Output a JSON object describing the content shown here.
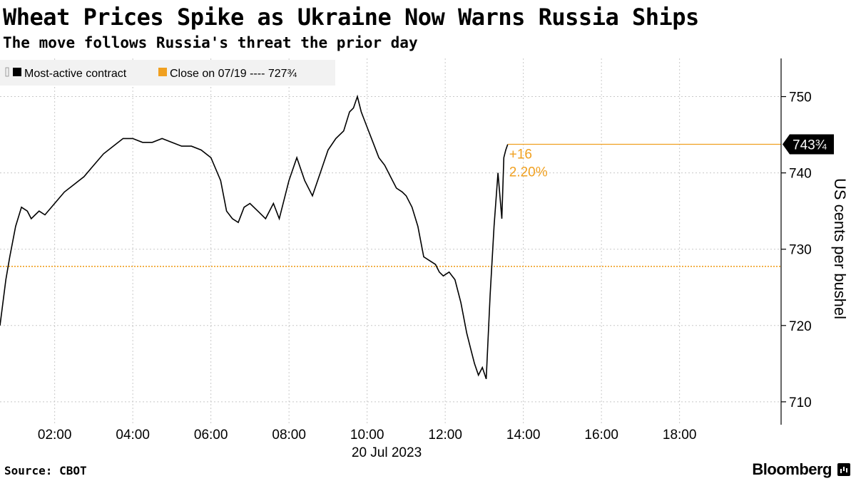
{
  "title": "Wheat Prices Spike as Ukraine Now Warns Russia Ships",
  "subtitle": "The move follows Russia's threat the prior day",
  "source": "Source: CBOT",
  "brand": "Bloomberg",
  "chart_data": {
    "type": "line",
    "ylabel": "US cents per bushel",
    "xlabel": "20 Jul 2023",
    "ylim": [
      707,
      755
    ],
    "xlim": [
      0.6,
      20.6
    ],
    "y_ticks": [
      710,
      720,
      730,
      740,
      750
    ],
    "x_ticks": [
      2,
      4,
      6,
      8,
      10,
      12,
      14,
      16,
      18
    ],
    "x_tick_labels": [
      "02:00",
      "04:00",
      "06:00",
      "08:00",
      "10:00",
      "12:00",
      "14:00",
      "16:00",
      "18:00"
    ],
    "grid": true,
    "legend": {
      "placement": "top-left",
      "items": [
        {
          "label": "Most-active contract",
          "color": "#000000"
        },
        {
          "label": "Close on 07/19 ---- 727¾",
          "color": "#f0a020"
        }
      ]
    },
    "colors": {
      "series": "#000000",
      "reference": "#f0a020"
    },
    "reference_line": {
      "label": "Close on 07/19",
      "value": 727.75
    },
    "last_value": {
      "value": 743.75,
      "label": "743¾"
    },
    "annotation": {
      "change": "+16",
      "percent": "2.20%"
    },
    "series": [
      {
        "name": "Most-active contract",
        "x": [
          0.6,
          0.75,
          0.85,
          1.0,
          1.15,
          1.3,
          1.4,
          1.5,
          1.6,
          1.75,
          2.0,
          2.25,
          2.5,
          2.75,
          3.0,
          3.25,
          3.5,
          3.75,
          4.0,
          4.25,
          4.5,
          4.75,
          5.0,
          5.25,
          5.5,
          5.75,
          6.0,
          6.25,
          6.4,
          6.55,
          6.7,
          6.85,
          7.0,
          7.2,
          7.4,
          7.6,
          7.75,
          8.0,
          8.2,
          8.4,
          8.6,
          8.8,
          9.0,
          9.2,
          9.4,
          9.55,
          9.65,
          9.75,
          9.85,
          10.0,
          10.15,
          10.3,
          10.45,
          10.6,
          10.75,
          10.9,
          11.0,
          11.15,
          11.3,
          11.45,
          11.6,
          11.75,
          11.85,
          11.95,
          12.1,
          12.25,
          12.4,
          12.55,
          12.65,
          12.75,
          12.85,
          12.95,
          13.05,
          13.15,
          13.25,
          13.35,
          13.45,
          13.5,
          13.55,
          13.6
        ],
        "values": [
          720,
          726,
          729,
          733,
          735.5,
          735,
          734,
          734.5,
          735,
          734.5,
          736,
          737.5,
          738.5,
          739.5,
          741,
          742.5,
          743.5,
          744.5,
          744.5,
          744,
          744,
          744.5,
          744,
          743.5,
          743.5,
          743,
          742,
          739,
          735,
          734,
          733.5,
          735.5,
          736,
          735,
          734,
          736,
          734,
          739,
          742,
          739,
          737,
          740,
          743,
          744.5,
          745.5,
          748,
          748.5,
          750,
          748,
          746,
          744,
          742,
          741,
          739.5,
          738,
          737.5,
          737,
          735.5,
          733,
          729,
          728.5,
          728,
          727,
          726.5,
          727,
          726,
          723,
          719,
          717,
          715,
          713.5,
          714.5,
          713,
          724,
          733,
          740,
          734,
          742,
          743,
          743.75
        ]
      }
    ]
  }
}
